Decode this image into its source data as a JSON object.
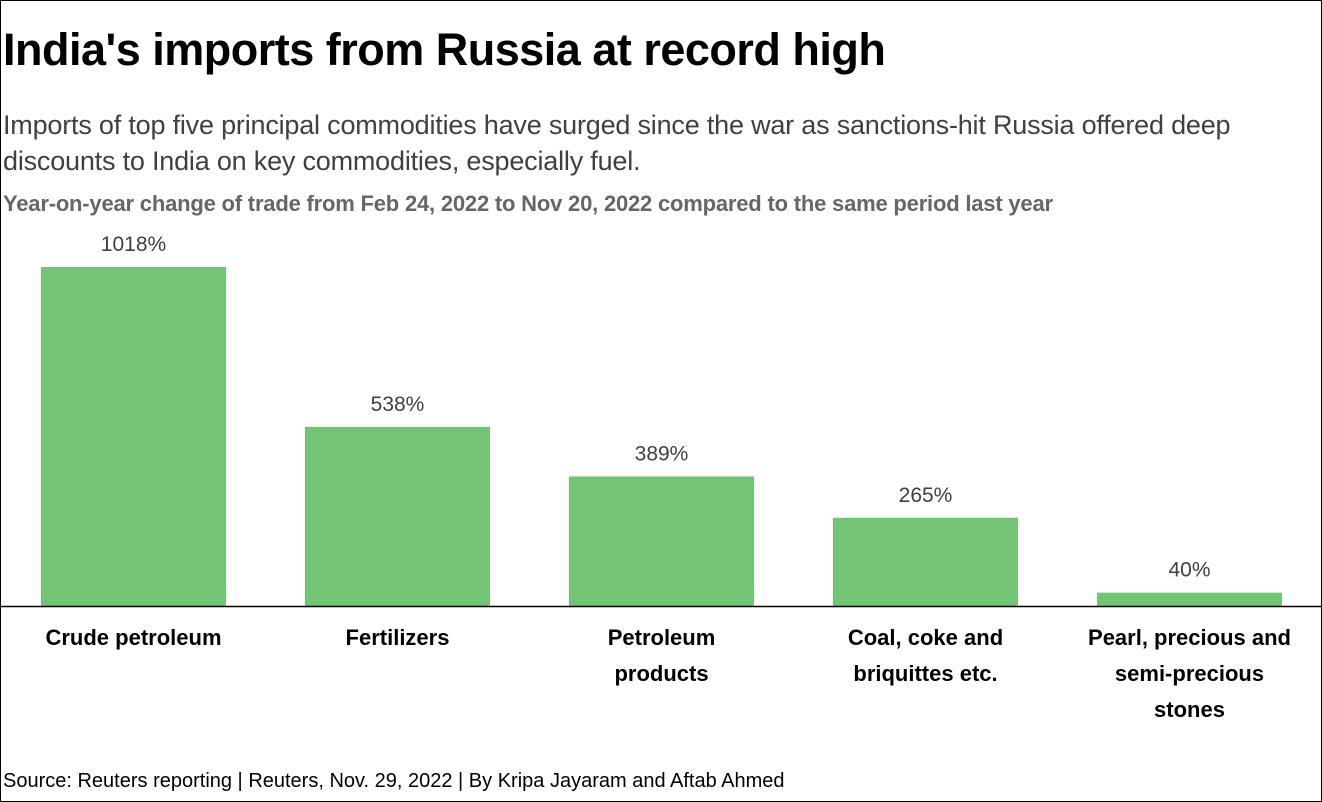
{
  "title": "India's imports from Russia at record high",
  "subtitle": "Imports of top five principal commodities have surged since the war as sanctions-hit Russia offered deep discounts to India on key commodities, especially fuel.",
  "chart_caption": "Year-on-year change of trade from Feb 24, 2022 to Nov 20, 2022 compared to the same period last year",
  "source": "Source: Reuters reporting | Reuters, Nov. 29, 2022 | By Kripa Jayaram and Aftab Ahmed",
  "colors": {
    "bar": "#74c476",
    "baseline": "#000000",
    "value_label": "#404040",
    "category_label": "#000000"
  },
  "chart_data": {
    "type": "bar",
    "title": "",
    "xlabel": "",
    "ylabel": "",
    "categories": [
      "Crude petroleum",
      "Fertilizers",
      "Petroleum products",
      "Coal, coke and briquittes etc.",
      "Pearl, precious and semi-precious stones"
    ],
    "category_lines": [
      [
        "Crude petroleum"
      ],
      [
        "Fertilizers"
      ],
      [
        "Petroleum",
        "products"
      ],
      [
        "Coal, coke and",
        "briquittes etc."
      ],
      [
        "Pearl, precious and",
        "semi-precious",
        "stones"
      ]
    ],
    "values": [
      1018,
      538,
      389,
      265,
      40
    ],
    "value_labels": [
      "1018%",
      "538%",
      "389%",
      "265%",
      "40%"
    ],
    "unit": "%",
    "ylim": [
      0,
      1018
    ],
    "grid": false,
    "legend": "none"
  }
}
